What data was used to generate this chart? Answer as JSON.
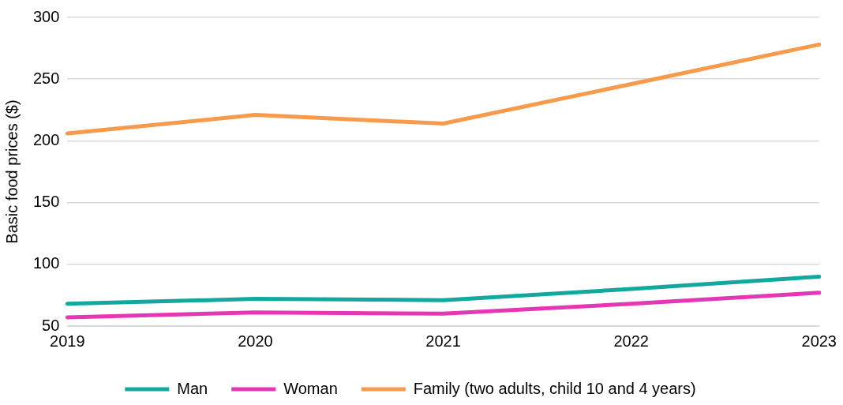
{
  "chart_data": {
    "type": "line",
    "ylabel": "Basic food prices ($)",
    "categories": [
      "2019",
      "2020",
      "2021",
      "2022",
      "2023"
    ],
    "series": [
      {
        "name": "Man",
        "color": "#13a89e",
        "values": [
          68,
          72,
          71,
          80,
          90
        ]
      },
      {
        "name": "Woman",
        "color": "#e536b6",
        "values": [
          57,
          61,
          60,
          68,
          77
        ]
      },
      {
        "name": "Family (two adults, child 10 and 4 years)",
        "color": "#f89a4c",
        "values": [
          206,
          221,
          214,
          246,
          278
        ]
      }
    ],
    "ylim": [
      50,
      300
    ],
    "yticks": [
      50,
      100,
      150,
      200,
      250,
      300
    ],
    "grid": "y",
    "legend": "bottom",
    "marker": "none",
    "line_style": "solid"
  }
}
